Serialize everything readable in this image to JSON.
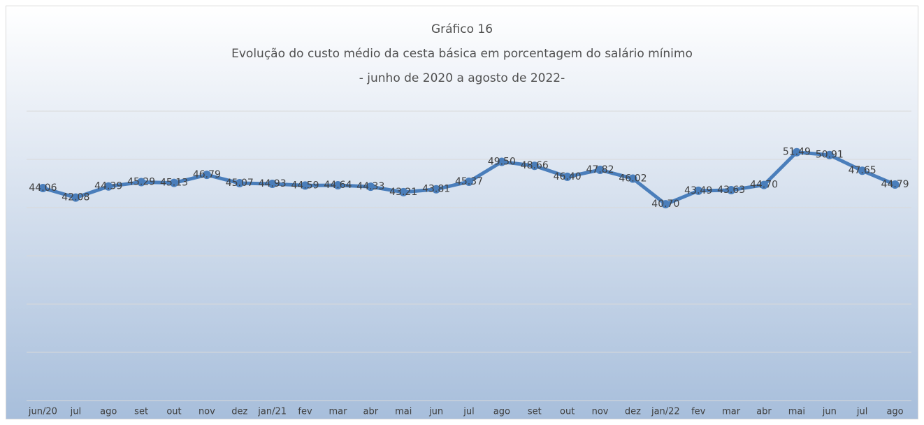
{
  "chart_data": {
    "type": "line",
    "title": [
      "Gráfico 16",
      "Evolução do custo médio da cesta básica em porcentagem do salário mínimo",
      "- junho de 2020 a agosto de 2022-"
    ],
    "categories": [
      "jun/20",
      "jul",
      "ago",
      "set",
      "out",
      "nov",
      "dez",
      "jan/21",
      "fev",
      "mar",
      "abr",
      "mai",
      "jun",
      "jul",
      "ago",
      "set",
      "out",
      "nov",
      "dez",
      "jan/22",
      "fev",
      "mar",
      "abr",
      "mai",
      "jun",
      "jul",
      "ago"
    ],
    "series": [
      {
        "color": "#4a7ebb",
        "values": [
          44.06,
          42.08,
          44.39,
          45.29,
          45.13,
          46.79,
          45.07,
          44.93,
          44.59,
          44.64,
          44.33,
          43.21,
          43.81,
          45.37,
          49.5,
          48.66,
          46.4,
          47.82,
          46.02,
          40.7,
          43.49,
          43.63,
          44.7,
          51.49,
          50.91,
          47.65,
          44.79
        ],
        "value_labels": [
          "44.06",
          "42.08",
          "44.39",
          "45.29",
          "45.13",
          "46.79",
          "45.07",
          "44.93",
          "44.59",
          "44.64",
          "44.33",
          "43.21",
          "43.81",
          "45.37",
          "49.50",
          "48.66",
          "46.40",
          "47.82",
          "46.02",
          "40.70",
          "43.49",
          "43.63",
          "44.70",
          "51.49",
          "50.91",
          "47.65",
          "44.79"
        ]
      }
    ],
    "ylim": [
      0,
      60
    ],
    "yticks": [
      0,
      10,
      20,
      30,
      40,
      50,
      60
    ],
    "grid": true
  }
}
